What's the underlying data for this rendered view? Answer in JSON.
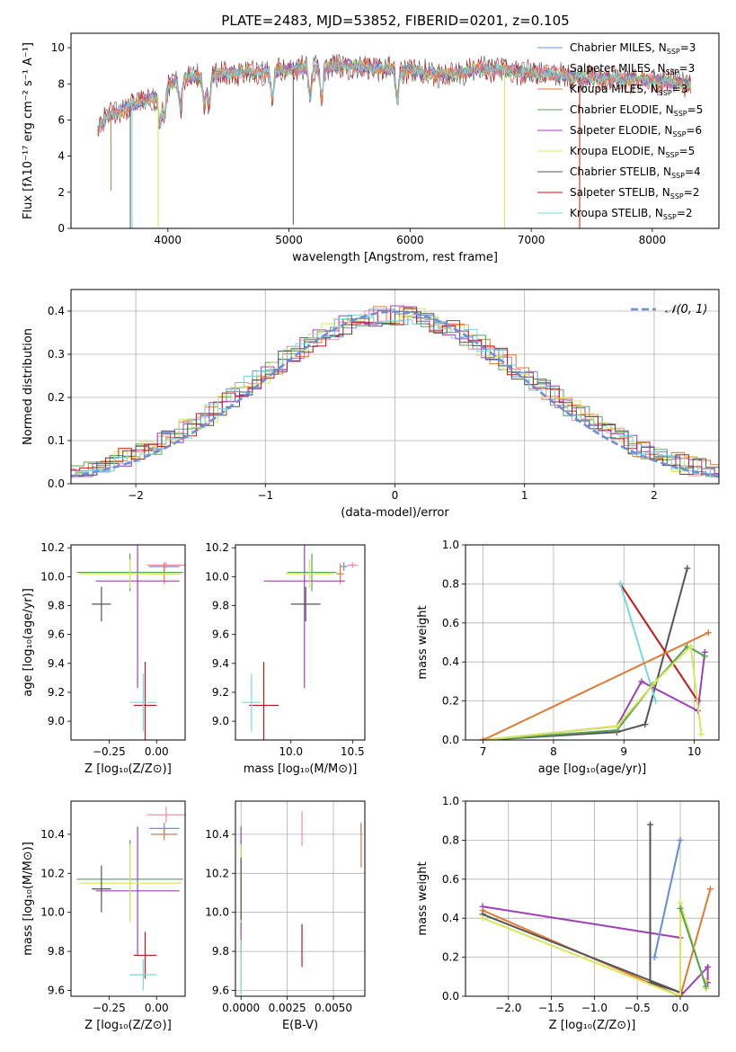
{
  "title": "PLATE=2483, MJD=53852, FIBERID=0201, z=0.105",
  "colors": {
    "chabrier_miles": "#6d8fd9",
    "salpeter_miles": "#f08a9c",
    "kroupa_miles": "#e07a34",
    "chabrier_elodie": "#5aa05a",
    "salpeter_elodie": "#a040b8",
    "kroupa_elodie": "#d6e85a",
    "chabrier_stelib": "#555555",
    "salpeter_stelib": "#c01818",
    "kroupa_stelib": "#78d8dc",
    "normal_curve": "#6d8fd9",
    "grid": "#b0b0b0"
  },
  "chart_data": [
    {
      "id": "spectrum",
      "type": "line",
      "xlabel": "wavelength [Angstrom, rest frame]",
      "ylabel": "Flux [fλ10⁻¹⁷ erg cm⁻² s⁻¹ A⁻¹]",
      "xlim": [
        3200,
        8550
      ],
      "ylim": [
        0,
        10.8
      ],
      "xticks": [
        4000,
        5000,
        6000,
        7000,
        8000
      ],
      "yticks": [
        0,
        2,
        4,
        6,
        8,
        10
      ],
      "grid": false,
      "legend_position": "top-right",
      "legend": [
        {
          "base": "Chabrier MILES, N",
          "sub": "SSP",
          "tail": "=3",
          "color_key": "chabrier_miles"
        },
        {
          "base": "Salpeter MILES, N",
          "sub": "SSP",
          "tail": "=3",
          "color_key": "salpeter_miles"
        },
        {
          "base": "Kroupa MILES, N",
          "sub": "SSP",
          "tail": "=3",
          "color_key": "kroupa_miles"
        },
        {
          "base": "Chabrier ELODIE, N",
          "sub": "SSP",
          "tail": "=5",
          "color_key": "chabrier_elodie"
        },
        {
          "base": "Salpeter ELODIE, N",
          "sub": "SSP",
          "tail": "=6",
          "color_key": "salpeter_elodie"
        },
        {
          "base": "Kroupa ELODIE, N",
          "sub": "SSP",
          "tail": "=5",
          "color_key": "kroupa_elodie"
        },
        {
          "base": "Chabrier STELIB, N",
          "sub": "SSP",
          "tail": "=4",
          "color_key": "chabrier_stelib"
        },
        {
          "base": "Salpeter STELIB, N",
          "sub": "SSP",
          "tail": "=2",
          "color_key": "salpeter_stelib"
        },
        {
          "base": "Kroupa STELIB, N",
          "sub": "SSP",
          "tail": "=2",
          "color_key": "kroupa_stelib"
        }
      ],
      "continuum": [
        [
          3400,
          5.2
        ],
        [
          3500,
          6.2
        ],
        [
          3700,
          6.8
        ],
        [
          3900,
          7.3
        ],
        [
          4100,
          8.3
        ],
        [
          4500,
          8.6
        ],
        [
          5000,
          8.8
        ],
        [
          5500,
          9.0
        ],
        [
          6000,
          8.7
        ],
        [
          6300,
          8.5
        ],
        [
          6600,
          8.9
        ],
        [
          7000,
          8.6
        ],
        [
          7500,
          8.3
        ],
        [
          8000,
          8.2
        ],
        [
          8300,
          8.0
        ]
      ],
      "absorption_lines": [
        3935,
        3970,
        4102,
        4300,
        4340,
        4861,
        5175,
        5270,
        5893
      ],
      "drops": [
        {
          "x": 3530,
          "y_min": 2.1,
          "color_key": "kroupa_miles"
        },
        {
          "x": 3690,
          "y_min": 0,
          "color_key": "chabrier_stelib"
        },
        {
          "x": 3705,
          "y_min": 0,
          "color_key": "kroupa_stelib"
        },
        {
          "x": 3920,
          "y_min": 0,
          "color_key": "kroupa_elodie"
        },
        {
          "x": 5035,
          "y_min": 0.2,
          "color_key": "chabrier_stelib"
        },
        {
          "x": 6780,
          "y_min": 0,
          "color_key": "kroupa_elodie"
        },
        {
          "x": 7400,
          "y_min": 0,
          "color_key": "salpeter_stelib"
        }
      ]
    },
    {
      "id": "residuals",
      "type": "bar",
      "xlabel": "(data-model)/error",
      "ylabel": "Normed distribution",
      "xlim": [
        -2.5,
        2.5
      ],
      "ylim": [
        0,
        0.45
      ],
      "xticks": [
        -2,
        -1,
        0,
        1,
        2
      ],
      "yticks": [
        0.0,
        0.1,
        0.2,
        0.3,
        0.4
      ],
      "bin_width": 0.1,
      "grid": true,
      "legend_position": "top-right",
      "legend_label": "𝒩(0, 1)",
      "normal_curve": {
        "mean": 0,
        "sigma": 1
      }
    },
    {
      "id": "age-vs-z",
      "type": "scatter",
      "xlabel": "Z [log₁₀(Z/Z⊙)]",
      "ylabel": "age  [log₁₀(age/yr)]",
      "xlim": [
        -0.45,
        0.15
      ],
      "ylim": [
        8.87,
        10.22
      ],
      "xticks": [
        -0.25,
        0.0
      ],
      "xtick_labels": [
        "−0.25",
        "0.00"
      ],
      "yticks": [
        9.0,
        9.2,
        9.4,
        9.6,
        9.8,
        10.0,
        10.2
      ],
      "grid": false,
      "points": [
        {
          "color_key": "chabrier_miles",
          "x": 0.04,
          "xerr": 0.08,
          "y": 10.07,
          "yerr": 0.03
        },
        {
          "color_key": "salpeter_miles",
          "x": 0.05,
          "xerr": 0.1,
          "y": 10.08,
          "yerr": 0.02
        },
        {
          "color_key": "kroupa_miles",
          "x": 0.04,
          "xerr": 0.07,
          "y": 10.02,
          "yerr": 0.07
        },
        {
          "color_key": "chabrier_elodie",
          "x": -0.14,
          "xerr": 0.28,
          "y": 10.03,
          "yerr": 0.13
        },
        {
          "color_key": "salpeter_elodie",
          "x": -0.1,
          "xerr": 0.22,
          "y": 9.97,
          "yerr": 0.74
        },
        {
          "color_key": "kroupa_elodie",
          "x": -0.14,
          "xerr": 0.27,
          "y": 10.02,
          "yerr": 0.1
        },
        {
          "color_key": "chabrier_stelib",
          "x": -0.29,
          "xerr": 0.05,
          "y": 9.81,
          "yerr": 0.12
        },
        {
          "color_key": "salpeter_stelib",
          "x": -0.06,
          "xerr": 0.06,
          "y": 9.11,
          "yerr": 0.3
        },
        {
          "color_key": "kroupa_stelib",
          "x": -0.07,
          "xerr": 0.07,
          "y": 9.13,
          "yerr": 0.2
        }
      ]
    },
    {
      "id": "age-vs-mass",
      "type": "scatter",
      "xlabel": "mass [log₁₀(M/M⊙)]",
      "ylabel": "",
      "xlim": [
        9.55,
        10.6
      ],
      "ylim": [
        8.87,
        10.22
      ],
      "xticks": [
        10.0,
        10.5
      ],
      "xtick_labels": [
        "10.0",
        "10.5"
      ],
      "yticks": [
        9.0,
        9.2,
        9.4,
        9.6,
        9.8,
        10.0,
        10.2
      ],
      "grid": false,
      "points": [
        {
          "color_key": "chabrier_miles",
          "x": 10.43,
          "xerr": 0.03,
          "y": 10.07,
          "yerr": 0.03
        },
        {
          "color_key": "salpeter_miles",
          "x": 10.5,
          "xerr": 0.04,
          "y": 10.08,
          "yerr": 0.02
        },
        {
          "color_key": "kroupa_miles",
          "x": 10.4,
          "xerr": 0.03,
          "y": 10.02,
          "yerr": 0.07
        },
        {
          "color_key": "chabrier_elodie",
          "x": 10.17,
          "xerr": 0.2,
          "y": 10.03,
          "yerr": 0.13
        },
        {
          "color_key": "salpeter_elodie",
          "x": 10.11,
          "xerr": 0.33,
          "y": 9.97,
          "yerr": 0.74
        },
        {
          "color_key": "kroupa_elodie",
          "x": 10.15,
          "xerr": 0.2,
          "y": 10.02,
          "yerr": 0.1
        },
        {
          "color_key": "chabrier_stelib",
          "x": 10.12,
          "xerr": 0.12,
          "y": 9.81,
          "yerr": 0.12
        },
        {
          "color_key": "salpeter_stelib",
          "x": 9.78,
          "xerr": 0.12,
          "y": 9.11,
          "yerr": 0.3
        },
        {
          "color_key": "kroupa_stelib",
          "x": 9.68,
          "xerr": 0.08,
          "y": 9.13,
          "yerr": 0.2
        }
      ]
    },
    {
      "id": "mass-weight-vs-age",
      "type": "line",
      "xlabel": "age  [log₁₀(age/yr)]",
      "ylabel": "mass weight",
      "xlim": [
        6.75,
        10.35
      ],
      "ylim": [
        0,
        1
      ],
      "xticks": [
        7,
        8,
        9,
        10
      ],
      "yticks": [
        0.0,
        0.2,
        0.4,
        0.6,
        0.8,
        1.0
      ],
      "grid": true,
      "series": [
        {
          "color_key": "chabrier_stelib",
          "x": [
            7.0,
            8.9,
            9.3,
            9.9
          ],
          "y": [
            0.0,
            0.04,
            0.08,
            0.88
          ]
        },
        {
          "color_key": "salpeter_stelib",
          "x": [
            8.95,
            10.05
          ],
          "y": [
            0.8,
            0.2
          ]
        },
        {
          "color_key": "kroupa_stelib",
          "x": [
            8.95,
            9.45
          ],
          "y": [
            0.8,
            0.2
          ]
        },
        {
          "color_key": "salpeter_elodie",
          "x": [
            7.0,
            8.9,
            9.25,
            10.05,
            10.15
          ],
          "y": [
            0.0,
            0.07,
            0.3,
            0.15,
            0.45
          ]
        },
        {
          "color_key": "chabrier_elodie",
          "x": [
            7.0,
            8.9,
            9.4,
            9.9,
            10.15
          ],
          "y": [
            0.0,
            0.05,
            0.28,
            0.48,
            0.43
          ]
        },
        {
          "color_key": "kroupa_elodie",
          "x": [
            7.0,
            8.9,
            9.45,
            9.95,
            10.1
          ],
          "y": [
            0.0,
            0.07,
            0.3,
            0.48,
            0.03
          ]
        },
        {
          "color_key": "kroupa_miles",
          "x": [
            7.0,
            10.2
          ],
          "y": [
            0.0,
            0.55
          ]
        }
      ]
    },
    {
      "id": "mass-vs-z",
      "type": "scatter",
      "xlabel": "Z [log₁₀(Z/Z⊙)]",
      "ylabel": "mass [log₁₀(M/M⊙)]",
      "xlim": [
        -0.45,
        0.15
      ],
      "ylim": [
        9.57,
        10.57
      ],
      "xticks": [
        -0.25,
        0.0
      ],
      "xtick_labels": [
        "−0.25",
        "0.00"
      ],
      "yticks": [
        9.6,
        9.8,
        10.0,
        10.2,
        10.4
      ],
      "grid": false,
      "points": [
        {
          "color_key": "chabrier_miles",
          "x": 0.04,
          "xerr": 0.08,
          "y": 10.43,
          "yerr": 0.03
        },
        {
          "color_key": "salpeter_miles",
          "x": 0.05,
          "xerr": 0.1,
          "y": 10.5,
          "yerr": 0.04
        },
        {
          "color_key": "kroupa_miles",
          "x": 0.04,
          "xerr": 0.07,
          "y": 10.4,
          "yerr": 0.03
        },
        {
          "color_key": "chabrier_elodie",
          "x": -0.14,
          "xerr": 0.28,
          "y": 10.17,
          "yerr": 0.2
        },
        {
          "color_key": "salpeter_elodie",
          "x": -0.1,
          "xerr": 0.22,
          "y": 10.11,
          "yerr": 0.33
        },
        {
          "color_key": "kroupa_elodie",
          "x": -0.14,
          "xerr": 0.27,
          "y": 10.15,
          "yerr": 0.2
        },
        {
          "color_key": "chabrier_stelib",
          "x": -0.29,
          "xerr": 0.05,
          "y": 10.12,
          "yerr": 0.12
        },
        {
          "color_key": "salpeter_stelib",
          "x": -0.06,
          "xerr": 0.06,
          "y": 9.78,
          "yerr": 0.12
        },
        {
          "color_key": "kroupa_stelib",
          "x": -0.07,
          "xerr": 0.07,
          "y": 9.68,
          "yerr": 0.08
        }
      ]
    },
    {
      "id": "mass-vs-ebv",
      "type": "scatter",
      "xlabel": "E(B-V)",
      "ylabel": "",
      "xlim": [
        -0.0003,
        0.0067
      ],
      "ylim": [
        9.57,
        10.57
      ],
      "xticks": [
        0.0,
        0.0025,
        0.005
      ],
      "xtick_labels": [
        "0.0000",
        "0.0025",
        "0.0050"
      ],
      "yticks": [
        9.6,
        9.8,
        10.0,
        10.2,
        10.4
      ],
      "grid": true,
      "points": [
        {
          "color_key": "chabrier_miles",
          "x": 0.0065,
          "xerr": 0,
          "y": 10.43,
          "yerr": 0.03
        },
        {
          "color_key": "salpeter_miles",
          "x": 0.0033,
          "xerr": 0,
          "y": 10.43,
          "yerr": 0.09
        },
        {
          "color_key": "kroupa_miles",
          "x": 0.0065,
          "xerr": 0,
          "y": 10.34,
          "yerr": 0.11
        },
        {
          "color_key": "chabrier_elodie",
          "x": 0.0,
          "xerr": 0,
          "y": 10.17,
          "yerr": 0.2
        },
        {
          "color_key": "salpeter_elodie",
          "x": 0.0,
          "xerr": 0,
          "y": 10.11,
          "yerr": 0.33
        },
        {
          "color_key": "kroupa_elodie",
          "x": 0.0,
          "xerr": 0,
          "y": 10.15,
          "yerr": 0.2
        },
        {
          "color_key": "chabrier_stelib",
          "x": 0.0,
          "xerr": 0,
          "y": 10.12,
          "yerr": 0.16
        },
        {
          "color_key": "salpeter_stelib",
          "x": 0.0033,
          "xerr": 0,
          "y": 9.83,
          "yerr": 0.11
        },
        {
          "color_key": "kroupa_stelib",
          "x": 0.0,
          "xerr": 0,
          "y": 9.72,
          "yerr": 0.14
        }
      ]
    },
    {
      "id": "mass-weight-vs-z",
      "type": "line",
      "xlabel": "Z [log₁₀(Z/Z⊙)]",
      "ylabel": "mass weight",
      "xlim": [
        -2.5,
        0.45
      ],
      "ylim": [
        0,
        1
      ],
      "xticks": [
        -2.0,
        -1.5,
        -1.0,
        -0.5,
        0.0
      ],
      "xtick_labels": [
        "−2.0",
        "−1.5",
        "−1.0",
        "−0.5",
        "0.0"
      ],
      "yticks": [
        0.0,
        0.2,
        0.4,
        0.6,
        0.8,
        1.0
      ],
      "grid": true,
      "series": [
        {
          "color_key": "salpeter_elodie",
          "x": [
            -2.3,
            0.0
          ],
          "y": [
            0.46,
            0.3
          ]
        },
        {
          "color_key": "salpeter_elodie",
          "x": [
            0.0,
            0.32,
            0.32
          ],
          "y": [
            0.0,
            0.15,
            0.07
          ]
        },
        {
          "color_key": "kroupa_miles",
          "x": [
            -2.3,
            0.0,
            0.35
          ],
          "y": [
            0.44,
            0.0,
            0.55
          ]
        },
        {
          "color_key": "chabrier_stelib",
          "x": [
            -2.3,
            0.0,
            -0.35,
            -0.35
          ],
          "y": [
            0.42,
            0.02,
            0.07,
            0.88
          ]
        },
        {
          "color_key": "kroupa_elodie",
          "x": [
            -2.3,
            0.0,
            0.0,
            0.3,
            0.3
          ],
          "y": [
            0.4,
            0.0,
            0.48,
            0.04,
            0.08
          ]
        },
        {
          "color_key": "chabrier_elodie",
          "x": [
            0.0,
            0.3
          ],
          "y": [
            0.45,
            0.05
          ]
        },
        {
          "color_key": "kroupa_stelib",
          "x": [
            -0.3,
            0.0
          ],
          "y": [
            0.2,
            0.8
          ]
        },
        {
          "color_key": "chabrier_miles",
          "x": [
            -0.3,
            0.0
          ],
          "y": [
            0.2,
            0.8
          ]
        }
      ]
    }
  ]
}
